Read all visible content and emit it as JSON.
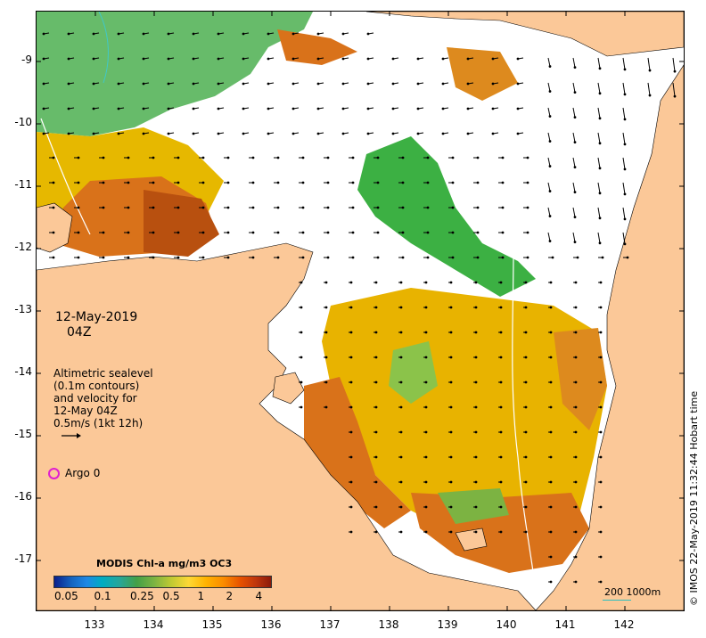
{
  "map": {
    "date_line1": "12-May-2019",
    "date_line2": "04Z",
    "legend_lines": [
      "Altimetric sealevel",
      "(0.1m contours)",
      "and velocity for",
      "12-May 04Z",
      "0.5m/s (1kt 12h)"
    ],
    "argo_label": "Argo 0",
    "colorbar_title": "MODIS Chl-a mg/m3 OC3",
    "colorbar_ticks": [
      "0.05",
      "0.1",
      "0.25",
      "0.5",
      "1",
      "2",
      "4"
    ],
    "scale_label": "200  1000m",
    "credit": "© IMOS 22-May-2019 11:32:44 Hobart time",
    "y_ticks": [
      "-9",
      "-10",
      "-11",
      "-12",
      "-13",
      "-14",
      "-15",
      "-16",
      "-17"
    ],
    "x_ticks": [
      "133",
      "134",
      "135",
      "136",
      "137",
      "138",
      "139",
      "140",
      "141",
      "142"
    ],
    "extent": {
      "lon_min": 132.0,
      "lon_max": 143.0,
      "lat_min": -17.8,
      "lat_max": -8.2
    },
    "colors": {
      "land": "#fbc898",
      "argo": "#e020d0",
      "contour": "#e8f4f4"
    }
  }
}
